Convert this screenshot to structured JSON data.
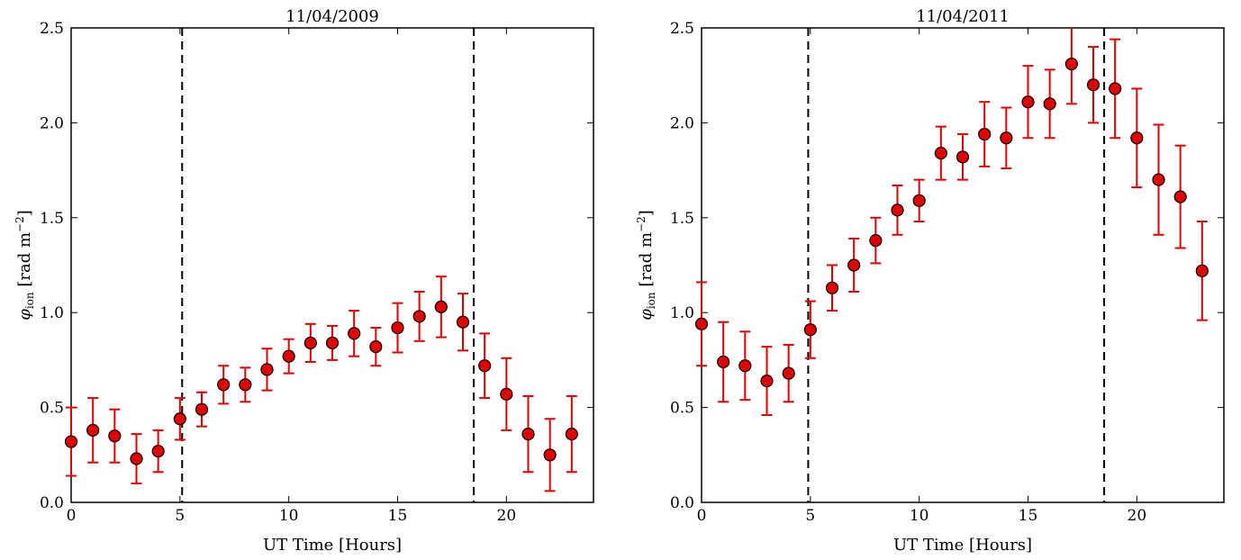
{
  "chart_data": [
    {
      "type": "scatter",
      "title": "11/04/2009",
      "xlabel": "UT Time [Hours]",
      "ylabel": "φ_ion [rad m^-2]",
      "ylabel_parts": {
        "phi": "φ",
        "sub": "ion",
        "unit": " [rad m",
        "exp": "−2",
        "close": "]"
      },
      "xlim": [
        0,
        24
      ],
      "ylim": [
        0,
        2.5
      ],
      "xticks": [
        0,
        5,
        10,
        15,
        20
      ],
      "xtick_labels": [
        "0",
        "5",
        "10",
        "15",
        "20"
      ],
      "yticks": [
        0,
        0.5,
        1,
        1.5,
        2,
        2.5
      ],
      "ytick_labels": [
        "0.0",
        "0.5",
        "1.0",
        "1.5",
        "2.0",
        "2.5"
      ],
      "vlines": [
        5.1,
        18.5
      ],
      "grid": false,
      "color": "#e00000",
      "x": [
        0,
        1,
        2,
        3,
        4,
        5,
        6,
        7,
        8,
        9,
        10,
        11,
        12,
        13,
        14,
        15,
        16,
        17,
        18,
        19,
        20,
        21,
        22,
        23
      ],
      "y": [
        0.32,
        0.38,
        0.35,
        0.23,
        0.27,
        0.44,
        0.49,
        0.62,
        0.62,
        0.7,
        0.77,
        0.84,
        0.84,
        0.89,
        0.82,
        0.92,
        0.98,
        1.03,
        0.95,
        0.72,
        0.57,
        0.36,
        0.25,
        0.36
      ],
      "yerr": [
        0.18,
        0.17,
        0.14,
        0.13,
        0.11,
        0.11,
        0.09,
        0.1,
        0.09,
        0.11,
        0.09,
        0.1,
        0.09,
        0.12,
        0.1,
        0.13,
        0.13,
        0.16,
        0.15,
        0.17,
        0.19,
        0.2,
        0.19,
        0.2
      ]
    },
    {
      "type": "scatter",
      "title": "11/04/2011",
      "xlabel": "UT Time [Hours]",
      "ylabel": "φ_ion [rad m^-2]",
      "ylabel_parts": {
        "phi": "φ",
        "sub": "ion",
        "unit": " [rad m",
        "exp": "−2",
        "close": "]"
      },
      "xlim": [
        0,
        24
      ],
      "ylim": [
        0,
        2.5
      ],
      "xticks": [
        0,
        5,
        10,
        15,
        20
      ],
      "xtick_labels": [
        "0",
        "5",
        "10",
        "15",
        "20"
      ],
      "yticks": [
        0,
        0.5,
        1,
        1.5,
        2,
        2.5
      ],
      "ytick_labels": [
        "0.0",
        "0.5",
        "1.0",
        "1.5",
        "2.0",
        "2.5"
      ],
      "vlines": [
        4.9,
        18.5
      ],
      "grid": false,
      "color": "#e00000",
      "x": [
        0,
        1,
        2,
        3,
        4,
        5,
        6,
        7,
        8,
        9,
        10,
        11,
        12,
        13,
        14,
        15,
        16,
        17,
        18,
        19,
        20,
        21,
        22,
        23
      ],
      "y": [
        0.94,
        0.74,
        0.72,
        0.64,
        0.68,
        0.91,
        1.13,
        1.25,
        1.38,
        1.54,
        1.59,
        1.84,
        1.82,
        1.94,
        1.92,
        2.11,
        2.1,
        2.31,
        2.2,
        2.18,
        1.92,
        1.7,
        1.61,
        1.22
      ],
      "yerr": [
        0.22,
        0.21,
        0.18,
        0.18,
        0.15,
        0.15,
        0.12,
        0.14,
        0.12,
        0.13,
        0.11,
        0.14,
        0.12,
        0.17,
        0.16,
        0.19,
        0.18,
        0.21,
        0.2,
        0.26,
        0.26,
        0.29,
        0.27,
        0.26
      ]
    }
  ]
}
